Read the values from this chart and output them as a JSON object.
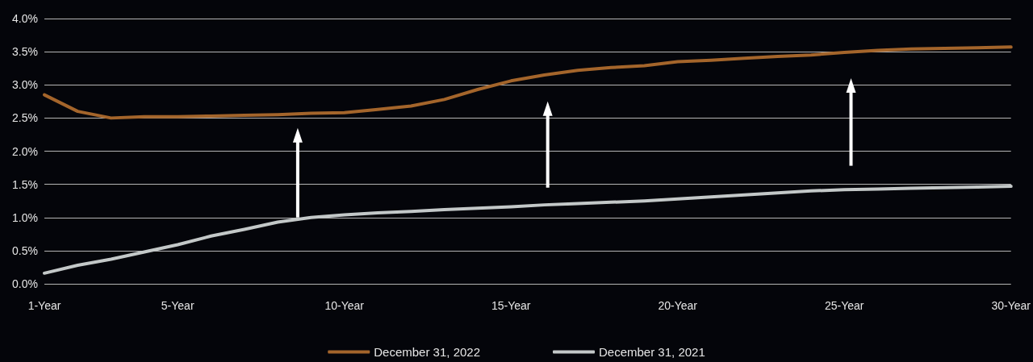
{
  "chart_data": {
    "type": "line",
    "categories": [
      "1-Year",
      null,
      null,
      null,
      "5-Year",
      null,
      null,
      null,
      null,
      "10-Year",
      null,
      null,
      null,
      null,
      "15-Year",
      null,
      null,
      null,
      null,
      "20-Year",
      null,
      null,
      null,
      null,
      "25-Year",
      null,
      null,
      null,
      null,
      "30-Year"
    ],
    "series": [
      {
        "name": "December 31, 2022",
        "color": "#a4652b",
        "values": [
          2.85,
          2.6,
          2.5,
          2.52,
          2.52,
          2.53,
          2.54,
          2.55,
          2.57,
          2.58,
          2.63,
          2.68,
          2.78,
          2.93,
          3.06,
          3.15,
          3.22,
          3.26,
          3.29,
          3.35,
          3.37,
          3.4,
          3.43,
          3.45,
          3.49,
          3.52,
          3.54,
          3.55,
          3.56,
          3.57
        ]
      },
      {
        "name": "December 31, 2021",
        "color": "#c3c8c8",
        "values": [
          0.16,
          0.28,
          0.37,
          0.48,
          0.59,
          0.72,
          0.82,
          0.93,
          1.0,
          1.04,
          1.07,
          1.09,
          1.12,
          1.14,
          1.16,
          1.19,
          1.21,
          1.23,
          1.25,
          1.28,
          1.31,
          1.34,
          1.37,
          1.4,
          1.42,
          1.43,
          1.44,
          1.45,
          1.46,
          1.47
        ]
      }
    ],
    "ylim": [
      0,
      4
    ],
    "yticks": [
      {
        "value": 0,
        "label": "0.0%"
      },
      {
        "value": 0.5,
        "label": "0.5%"
      },
      {
        "value": 1,
        "label": "1.0%"
      },
      {
        "value": 1.5,
        "label": "1.5%"
      },
      {
        "value": 2,
        "label": "2.0%"
      },
      {
        "value": 2.5,
        "label": "2.5%"
      },
      {
        "value": 3,
        "label": "3.0%"
      },
      {
        "value": 3.5,
        "label": "3.5%"
      },
      {
        "value": 4,
        "label": "4.0%"
      }
    ],
    "grid": "y",
    "legend": "bottom",
    "marker": "none",
    "line_style": "solid"
  }
}
